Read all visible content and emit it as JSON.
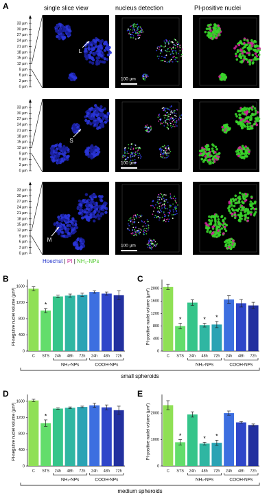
{
  "panel_a": {
    "label": "A",
    "column_titles": [
      "single slice view",
      "nucleus detection",
      "PI-positive nuclei"
    ],
    "zlim": [
      0,
      33
    ],
    "z_ticks": [
      {
        "value": 33,
        "label": "33 µm"
      },
      {
        "value": 30,
        "label": "30 µm"
      },
      {
        "value": 27,
        "label": "27 µm"
      },
      {
        "value": 24,
        "label": "24 µm"
      },
      {
        "value": 21,
        "label": "21 µm"
      },
      {
        "value": 18,
        "label": "18 µm"
      },
      {
        "value": 15,
        "label": "15 µm"
      },
      {
        "value": 12,
        "label": "12 µm"
      },
      {
        "value": 9,
        "label": "9 µm"
      },
      {
        "value": 6,
        "label": "6 µm"
      },
      {
        "value": 3,
        "label": "3 µm"
      },
      {
        "value": 0,
        "label": "0 µm"
      }
    ],
    "row_labels": [
      "L",
      "S",
      "M"
    ],
    "scale_bar": "100 µm",
    "legend": [
      {
        "text": "Hoechst",
        "color": "#2233cc"
      },
      {
        "text": "PI",
        "color": "#cc2299"
      },
      {
        "text": "NH₂-NPs",
        "color": "#55cc33"
      }
    ],
    "legend_separator": "|"
  },
  "footers": [
    "small spheroids",
    "medium spheroids"
  ],
  "chart_data": [
    {
      "type": "bar",
      "panel": "B",
      "ylabel": "PI-negative nuclei volume (µm³)",
      "categories": [
        "C",
        "STS",
        "24h",
        "48h",
        "72h",
        "24h",
        "48h",
        "72h"
      ],
      "values": [
        1540,
        1000,
        1350,
        1370,
        1390,
        1460,
        1420,
        1380
      ],
      "errors": [
        50,
        50,
        30,
        40,
        40,
        30,
        40,
        110
      ],
      "colors": [
        "#8fe055",
        "#63dd6b",
        "#35c58a",
        "#2fb6a2",
        "#2aa3b4",
        "#3d6fe0",
        "#2f46c9",
        "#22309f"
      ],
      "ylim": [
        0,
        1700
      ],
      "yticks": [
        0,
        400,
        800,
        1200,
        1600
      ],
      "groups": [
        {
          "name": "NH₂-NPs",
          "start": 2,
          "end": 4
        },
        {
          "name": "COOH-NPs",
          "start": 5,
          "end": 7
        }
      ],
      "significant": [
        false,
        true,
        false,
        false,
        false,
        false,
        false,
        false
      ],
      "significance_label": "*"
    },
    {
      "type": "bar",
      "panel": "C",
      "ylabel": "PI-positive nuclei volume (µm³)",
      "categories": [
        "C",
        "STS",
        "24h",
        "48h",
        "72h",
        "24h",
        "48h",
        "72h"
      ],
      "values": [
        2050,
        800,
        1550,
        830,
        850,
        1650,
        1530,
        1460
      ],
      "errors": [
        80,
        90,
        90,
        60,
        100,
        120,
        120,
        100
      ],
      "colors": [
        "#8fe055",
        "#63dd6b",
        "#35c58a",
        "#2fb6a2",
        "#2aa3b4",
        "#3d6fe0",
        "#2f46c9",
        "#22309f"
      ],
      "ylim": [
        0,
        2200
      ],
      "yticks": [
        0,
        400,
        800,
        1200,
        1600,
        2000
      ],
      "groups": [
        {
          "name": "NH₂-NPs",
          "start": 2,
          "end": 4
        },
        {
          "name": "COOH-NPs",
          "start": 5,
          "end": 7
        }
      ],
      "significant": [
        false,
        true,
        false,
        true,
        true,
        false,
        false,
        false
      ],
      "significance_label": "*"
    },
    {
      "type": "bar",
      "panel": "D",
      "ylabel": "PI-negative nuclei volume (µm³)",
      "categories": [
        "C",
        "STS",
        "24h",
        "48h",
        "72h",
        "24h",
        "48h",
        "72h"
      ],
      "values": [
        1620,
        1060,
        1420,
        1440,
        1460,
        1500,
        1450,
        1380
      ],
      "errors": [
        30,
        80,
        20,
        20,
        20,
        50,
        60,
        100
      ],
      "colors": [
        "#8fe055",
        "#63dd6b",
        "#35c58a",
        "#2fb6a2",
        "#2aa3b4",
        "#3d6fe0",
        "#2f46c9",
        "#22309f"
      ],
      "ylim": [
        0,
        1700
      ],
      "yticks": [
        0,
        400,
        800,
        1200,
        1600
      ],
      "groups": [
        {
          "name": "NH₂-NPs",
          "start": 2,
          "end": 4
        },
        {
          "name": "COOH-NPs",
          "start": 5,
          "end": 7
        }
      ],
      "significant": [
        false,
        true,
        false,
        false,
        false,
        false,
        false,
        false
      ],
      "significance_label": "*"
    },
    {
      "type": "bar",
      "panel": "E",
      "ylabel": "PI-positive nuclei volume (µm³)",
      "categories": [
        "C",
        "STS",
        "24h",
        "48h",
        "72h",
        "24h",
        "48h",
        "72h"
      ],
      "values": [
        2300,
        900,
        1950,
        850,
        880,
        2000,
        1650,
        1550
      ],
      "errors": [
        170,
        100,
        100,
        50,
        100,
        80,
        30,
        40
      ],
      "colors": [
        "#8fe055",
        "#63dd6b",
        "#35c58a",
        "#2fb6a2",
        "#2aa3b4",
        "#3d6fe0",
        "#2f46c9",
        "#22309f"
      ],
      "ylim": [
        0,
        2600
      ],
      "yticks": [
        0,
        1000,
        2000
      ],
      "groups": [
        {
          "name": "NH₂-NPs",
          "start": 2,
          "end": 4
        },
        {
          "name": "COOH-NPs",
          "start": 5,
          "end": 7
        }
      ],
      "significant": [
        false,
        true,
        false,
        true,
        true,
        false,
        false,
        false
      ],
      "significance_label": "*"
    }
  ]
}
